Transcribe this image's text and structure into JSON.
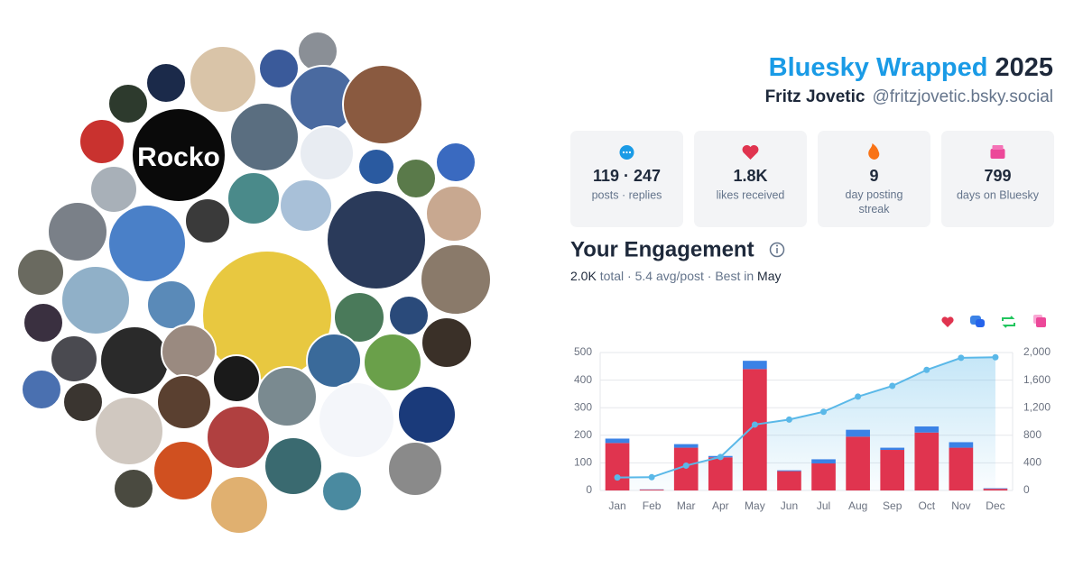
{
  "header": {
    "title": "Bluesky Wrapped",
    "year": "2025",
    "name": "Fritz Jovetic",
    "handle": "@fritzjovetic.bsky.social"
  },
  "collage": {
    "labels": [
      "Rocko"
    ]
  },
  "stats": [
    {
      "value": "119 · 247",
      "label": "posts · replies"
    },
    {
      "value": "1.8K",
      "label": "likes received"
    },
    {
      "value": "9",
      "label": "day posting streak"
    },
    {
      "value": "799",
      "label": "days on Bluesky"
    }
  ],
  "engagement": {
    "title": "Your Engagement",
    "summary": [
      {
        "text": "2.0K",
        "strong": true
      },
      {
        "text": " total · ",
        "strong": false
      },
      {
        "text": "5.4",
        "strong": false
      },
      {
        "text": " avg/post · Best in ",
        "strong": false
      },
      {
        "text": "May",
        "strong": true
      }
    ]
  },
  "chart_data": {
    "type": "bar",
    "stacked": true,
    "categories": [
      "Jan",
      "Feb",
      "Mar",
      "Apr",
      "May",
      "Jun",
      "Jul",
      "Aug",
      "Sep",
      "Oct",
      "Nov",
      "Dec"
    ],
    "series": [
      {
        "color": "#e0344f",
        "values": [
          172,
          3,
          155,
          120,
          440,
          70,
          98,
          195,
          147,
          210,
          155,
          6
        ]
      },
      {
        "color": "#3b82e6",
        "values": [
          16,
          1,
          13,
          5,
          30,
          3,
          15,
          25,
          8,
          22,
          20,
          2
        ]
      },
      {
        "type": "line",
        "axis": "y2",
        "color": "#5ab8e8",
        "values": [
          188,
          192,
          360,
          485,
          955,
          1028,
          1141,
          1361,
          1516,
          1748,
          1923,
          1931
        ]
      }
    ],
    "ylim": [
      0,
      500
    ],
    "yticks": [
      0,
      100,
      200,
      300,
      400,
      500
    ],
    "y2lim": [
      0,
      2000
    ],
    "y2ticks": [
      0,
      400,
      800,
      {
        "value": 1200,
        "label": "1,200"
      },
      {
        "value": 1600,
        "label": "1,600"
      },
      {
        "value": 2000,
        "label": "2,000"
      }
    ],
    "grid": true
  }
}
